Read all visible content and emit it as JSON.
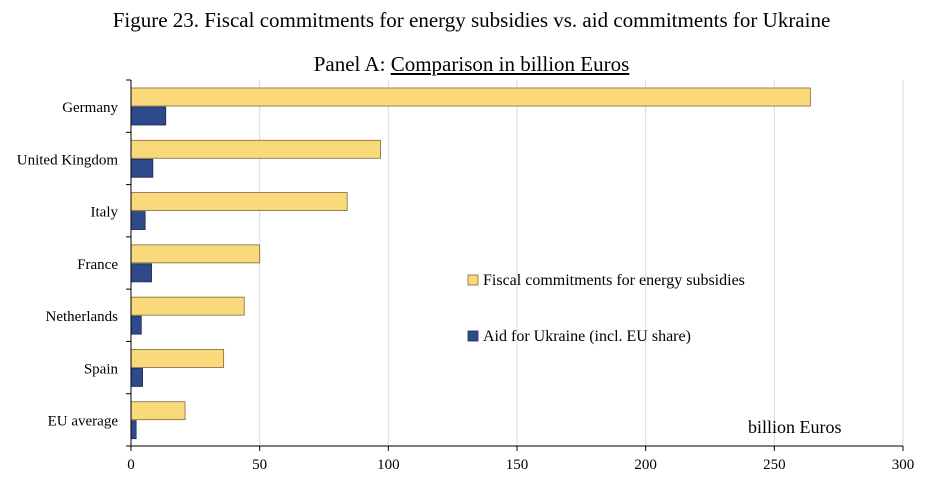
{
  "figure_title": "Figure 23. Fiscal commitments for energy subsidies vs. aid commitments for Ukraine",
  "panel": {
    "prefix": "Panel A: ",
    "title": "Comparison in billion Euros"
  },
  "colors": {
    "fiscal": "#FAD97A",
    "fiscal_stroke": "#7a6a3a",
    "aid": "#2F4A8A",
    "aid_stroke": "#1c2c55",
    "grid": "#d9d9d9",
    "axis": "#000000"
  },
  "chart_data": {
    "type": "bar",
    "orientation": "horizontal",
    "categories": [
      "Germany",
      "United Kingdom",
      "Italy",
      "France",
      "Netherlands",
      "Spain",
      "EU average"
    ],
    "series": [
      {
        "name": "Fiscal commitments for energy subsidies",
        "values": [
          264,
          97,
          84,
          50,
          44,
          36,
          21
        ]
      },
      {
        "name": "Aid for Ukraine (incl. EU share)",
        "values": [
          13.5,
          8.5,
          5.5,
          8,
          4,
          4.5,
          2
        ]
      }
    ],
    "xlim": [
      0,
      300
    ],
    "xticks": [
      0,
      50,
      100,
      150,
      200,
      250,
      300
    ],
    "unit_label": "billion Euros",
    "grid": "vertical",
    "legend_position": "center-right"
  }
}
